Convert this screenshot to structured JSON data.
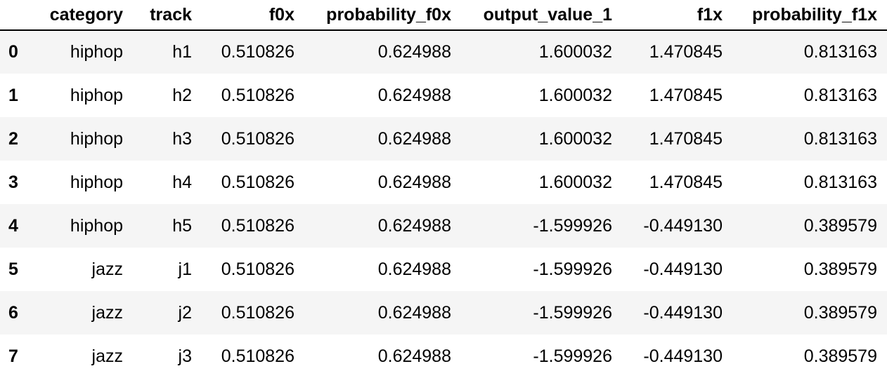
{
  "table": {
    "index_header": "",
    "columns": [
      "category",
      "track",
      "f0x",
      "probability_f0x",
      "output_value_1",
      "f1x",
      "probability_f1x"
    ],
    "rows": [
      {
        "index": "0",
        "cells": [
          "hiphop",
          "h1",
          "0.510826",
          "0.624988",
          "1.600032",
          "1.470845",
          "0.813163"
        ]
      },
      {
        "index": "1",
        "cells": [
          "hiphop",
          "h2",
          "0.510826",
          "0.624988",
          "1.600032",
          "1.470845",
          "0.813163"
        ]
      },
      {
        "index": "2",
        "cells": [
          "hiphop",
          "h3",
          "0.510826",
          "0.624988",
          "1.600032",
          "1.470845",
          "0.813163"
        ]
      },
      {
        "index": "3",
        "cells": [
          "hiphop",
          "h4",
          "0.510826",
          "0.624988",
          "1.600032",
          "1.470845",
          "0.813163"
        ]
      },
      {
        "index": "4",
        "cells": [
          "hiphop",
          "h5",
          "0.510826",
          "0.624988",
          "-1.599926",
          "-0.449130",
          "0.389579"
        ]
      },
      {
        "index": "5",
        "cells": [
          "jazz",
          "j1",
          "0.510826",
          "0.624988",
          "-1.599926",
          "-0.449130",
          "0.389579"
        ]
      },
      {
        "index": "6",
        "cells": [
          "jazz",
          "j2",
          "0.510826",
          "0.624988",
          "-1.599926",
          "-0.449130",
          "0.389579"
        ]
      },
      {
        "index": "7",
        "cells": [
          "jazz",
          "j3",
          "0.510826",
          "0.624988",
          "-1.599926",
          "-0.449130",
          "0.389579"
        ]
      }
    ]
  },
  "colors": {
    "stripe": "#f5f5f5",
    "background": "#ffffff",
    "text": "#000000"
  }
}
